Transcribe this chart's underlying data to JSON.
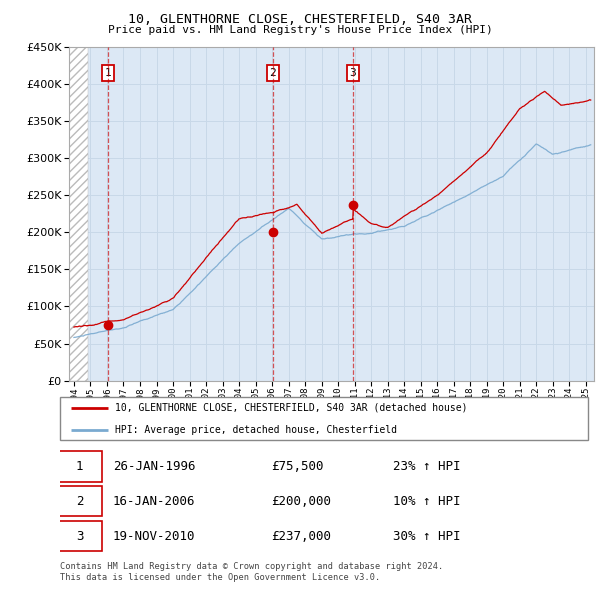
{
  "title1": "10, GLENTHORNE CLOSE, CHESTERFIELD, S40 3AR",
  "title2": "Price paid vs. HM Land Registry's House Price Index (HPI)",
  "legend_line1": "10, GLENTHORNE CLOSE, CHESTERFIELD, S40 3AR (detached house)",
  "legend_line2": "HPI: Average price, detached house, Chesterfield",
  "footer1": "Contains HM Land Registry data © Crown copyright and database right 2024.",
  "footer2": "This data is licensed under the Open Government Licence v3.0.",
  "transactions": [
    {
      "num": 1,
      "date": "26-JAN-1996",
      "price": 75500,
      "year": 1996.07,
      "pct": "23%",
      "dir": "↑"
    },
    {
      "num": 2,
      "date": "16-JAN-2006",
      "price": 200000,
      "year": 2006.05,
      "pct": "10%",
      "dir": "↑"
    },
    {
      "num": 3,
      "date": "19-NOV-2010",
      "price": 237000,
      "year": 2010.89,
      "pct": "30%",
      "dir": "↑"
    }
  ],
  "hatch_color": "#bbbbbb",
  "grid_color": "#c8d8e8",
  "plot_bg": "#dce8f5",
  "red_color": "#cc0000",
  "blue_color": "#7aaad0",
  "ylim": [
    0,
    450000
  ],
  "yticks": [
    0,
    50000,
    100000,
    150000,
    200000,
    250000,
    300000,
    350000,
    400000,
    450000
  ],
  "xlim_start": 1993.7,
  "xlim_end": 2025.5,
  "hatch_end": 1994.85
}
